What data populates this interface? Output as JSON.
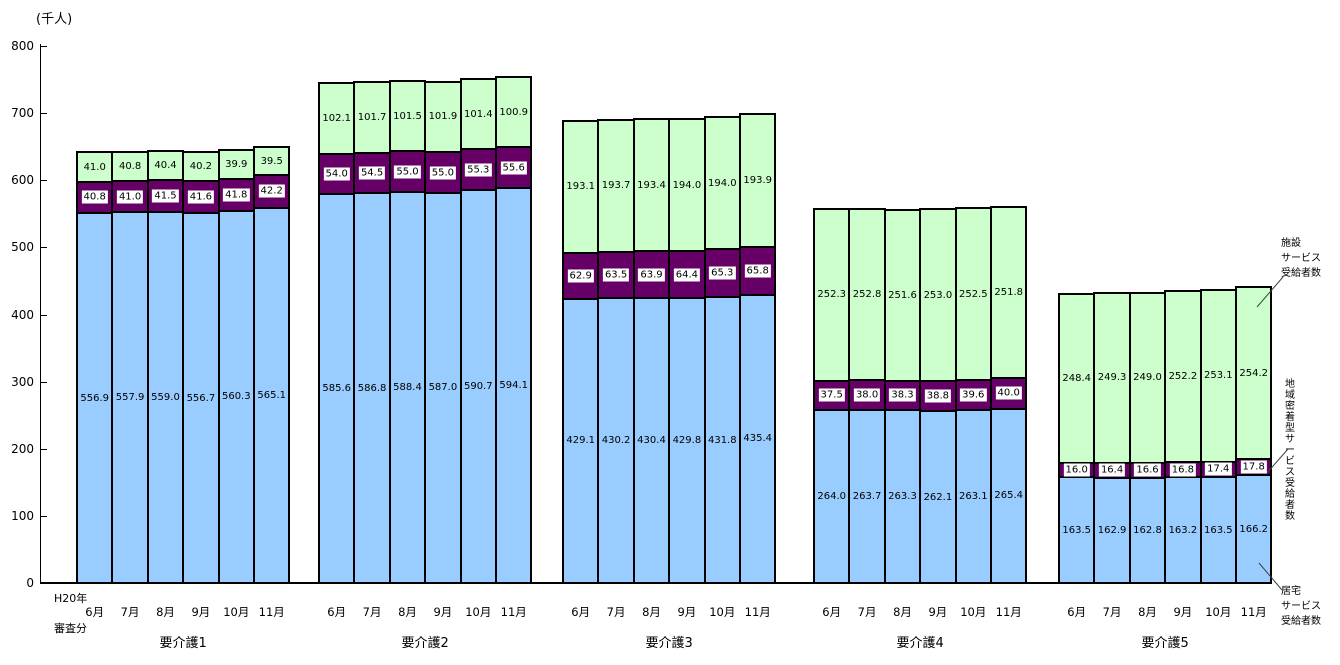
{
  "title_unit": "(千人)",
  "y_axis": {
    "ticks": [
      "800",
      "700",
      "600",
      "500",
      "400",
      "300",
      "200",
      "100",
      "0"
    ]
  },
  "x_axis": {
    "first_tick_prefix": "H20年",
    "first_tick_suffix": "審査分"
  },
  "legend": {
    "facility": {
      "lines": [
        "施設",
        "サービス",
        "受給者数"
      ]
    },
    "community": {
      "text": "地域密着型サービス受給者数"
    },
    "home": {
      "lines": [
        "居宅",
        "サービス",
        "受給者数"
      ]
    }
  },
  "chart_data": {
    "type": "bar",
    "stacked": true,
    "title": "",
    "ylabel": "(千人)",
    "ylim": [
      0,
      800
    ],
    "ytick_interval": 100,
    "grid": false,
    "legend_position": "right",
    "series_meta": [
      {
        "key": "home",
        "name": "居宅サービス受給者数",
        "color": "#99CCFF",
        "label_style": "plain"
      },
      {
        "key": "community",
        "name": "地域密着型サービス受給者数",
        "color": "#660066",
        "label_style": "white-box"
      },
      {
        "key": "facility",
        "name": "施設サービス受給者数",
        "color": "#CCFFCC",
        "label_style": "plain"
      }
    ],
    "groups": [
      {
        "label": "要介護1",
        "months": [
          "6月",
          "7月",
          "8月",
          "9月",
          "10月",
          "11月"
        ],
        "home": [
          556.9,
          557.9,
          559.0,
          556.7,
          560.3,
          565.1
        ],
        "community": [
          40.8,
          41.0,
          41.5,
          41.6,
          41.8,
          42.2
        ],
        "facility": [
          41.0,
          40.8,
          40.4,
          40.2,
          39.9,
          39.5
        ]
      },
      {
        "label": "要介護2",
        "months": [
          "6月",
          "7月",
          "8月",
          "9月",
          "10月",
          "11月"
        ],
        "home": [
          585.6,
          586.8,
          588.4,
          587.0,
          590.7,
          594.1
        ],
        "community": [
          54.0,
          54.5,
          55.0,
          55.0,
          55.3,
          55.6
        ],
        "facility": [
          102.1,
          101.7,
          101.5,
          101.9,
          101.4,
          100.9
        ]
      },
      {
        "label": "要介護3",
        "months": [
          "6月",
          "7月",
          "8月",
          "9月",
          "10月",
          "11月"
        ],
        "home": [
          429.1,
          430.2,
          430.4,
          429.8,
          431.8,
          435.4
        ],
        "community": [
          62.9,
          63.5,
          63.9,
          64.4,
          65.3,
          65.8
        ],
        "facility": [
          193.1,
          193.7,
          193.4,
          194.0,
          194.0,
          193.9
        ]
      },
      {
        "label": "要介護4",
        "months": [
          "6月",
          "7月",
          "8月",
          "9月",
          "10月",
          "11月"
        ],
        "home": [
          264.0,
          263.7,
          263.3,
          262.1,
          263.1,
          265.4
        ],
        "community": [
          37.5,
          38.0,
          38.3,
          38.8,
          39.6,
          40.0
        ],
        "facility": [
          252.3,
          252.8,
          251.6,
          253.0,
          252.5,
          251.8
        ]
      },
      {
        "label": "要介護5",
        "months": [
          "6月",
          "7月",
          "8月",
          "9月",
          "10月",
          "11月"
        ],
        "home": [
          163.5,
          162.9,
          162.8,
          163.2,
          163.5,
          166.2
        ],
        "community": [
          16.0,
          16.4,
          16.6,
          16.8,
          17.4,
          17.8
        ],
        "facility": [
          248.4,
          249.3,
          249.0,
          252.2,
          253.1,
          254.2
        ]
      }
    ]
  }
}
